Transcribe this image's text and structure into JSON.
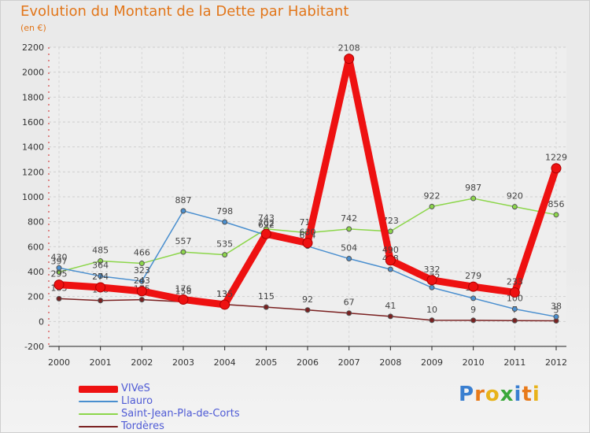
{
  "chart_data": {
    "type": "line",
    "title": "Evolution du Montant de la Dette par Habitant",
    "subtitle": "(en €)",
    "xlabel": "",
    "ylabel": "",
    "x": [
      "2000",
      "2001",
      "2002",
      "2003",
      "2004",
      "2005",
      "2006",
      "2007",
      "2008",
      "2009",
      "2010",
      "2011",
      "2012"
    ],
    "ylim": [
      -200,
      2200
    ],
    "yticks": [
      -200,
      0,
      200,
      400,
      600,
      800,
      1000,
      1200,
      1400,
      1600,
      1800,
      2000,
      2200
    ],
    "grid": true,
    "legend": "bottom-left",
    "series": [
      {
        "name": "Tordères",
        "color": "#7a2020",
        "values": [
          183,
          168,
          175,
          158,
          136,
          115,
          92,
          67,
          41,
          10,
          9,
          7,
          5
        ],
        "labels": [
          "183",
          "168",
          "175",
          "158",
          "136",
          "115",
          "92",
          "67",
          "41",
          "10",
          "9",
          "7",
          "5"
        ]
      },
      {
        "name": "Saint-Jean-Pla-de-Corts",
        "color": "#8cd64a",
        "values": [
          397,
          485,
          466,
          557,
          535,
          743,
          711,
          742,
          723,
          922,
          987,
          920,
          856
        ],
        "labels": [
          "397",
          "485",
          "466",
          "557",
          "535",
          "743",
          "711",
          "742",
          "723",
          "922",
          "987",
          "920",
          "856"
        ]
      },
      {
        "name": "Llauro",
        "color": "#4a8fcf",
        "values": [
          430,
          364,
          323,
          887,
          798,
          692,
          604,
          504,
          418,
          272,
          186,
          100,
          38
        ],
        "labels": [
          "430",
          "364",
          "323",
          "887",
          "798",
          "692",
          "604",
          "504",
          "418",
          "272",
          "186",
          "100",
          "38"
        ]
      },
      {
        "name": "VIVeS",
        "color": "#ee1111",
        "values": [
          295,
          274,
          243,
          176,
          135,
          702,
          630,
          2108,
          490,
          332,
          279,
          233,
          1229
        ],
        "labels": [
          "295",
          "274",
          "243",
          "176",
          "135",
          "702",
          "630",
          "2108",
          "490",
          "332",
          "279",
          "233",
          "1229"
        ]
      }
    ]
  },
  "legend_items": [
    {
      "name": "VIVeS",
      "color": "#ee1111"
    },
    {
      "name": "Llauro",
      "color": "#4a8fcf"
    },
    {
      "name": "Saint-Jean-Pla-de-Corts",
      "color": "#8cd64a"
    },
    {
      "name": "Tordères",
      "color": "#7a2020"
    }
  ],
  "logo": {
    "letters": [
      "P",
      "r",
      "o",
      "x",
      "i",
      "t",
      "i"
    ],
    "colors": [
      "#3a7fd0",
      "#e87a1a",
      "#e8b31a",
      "#3aa83a",
      "#3a7fd0",
      "#e87a1a",
      "#e8b31a"
    ]
  }
}
